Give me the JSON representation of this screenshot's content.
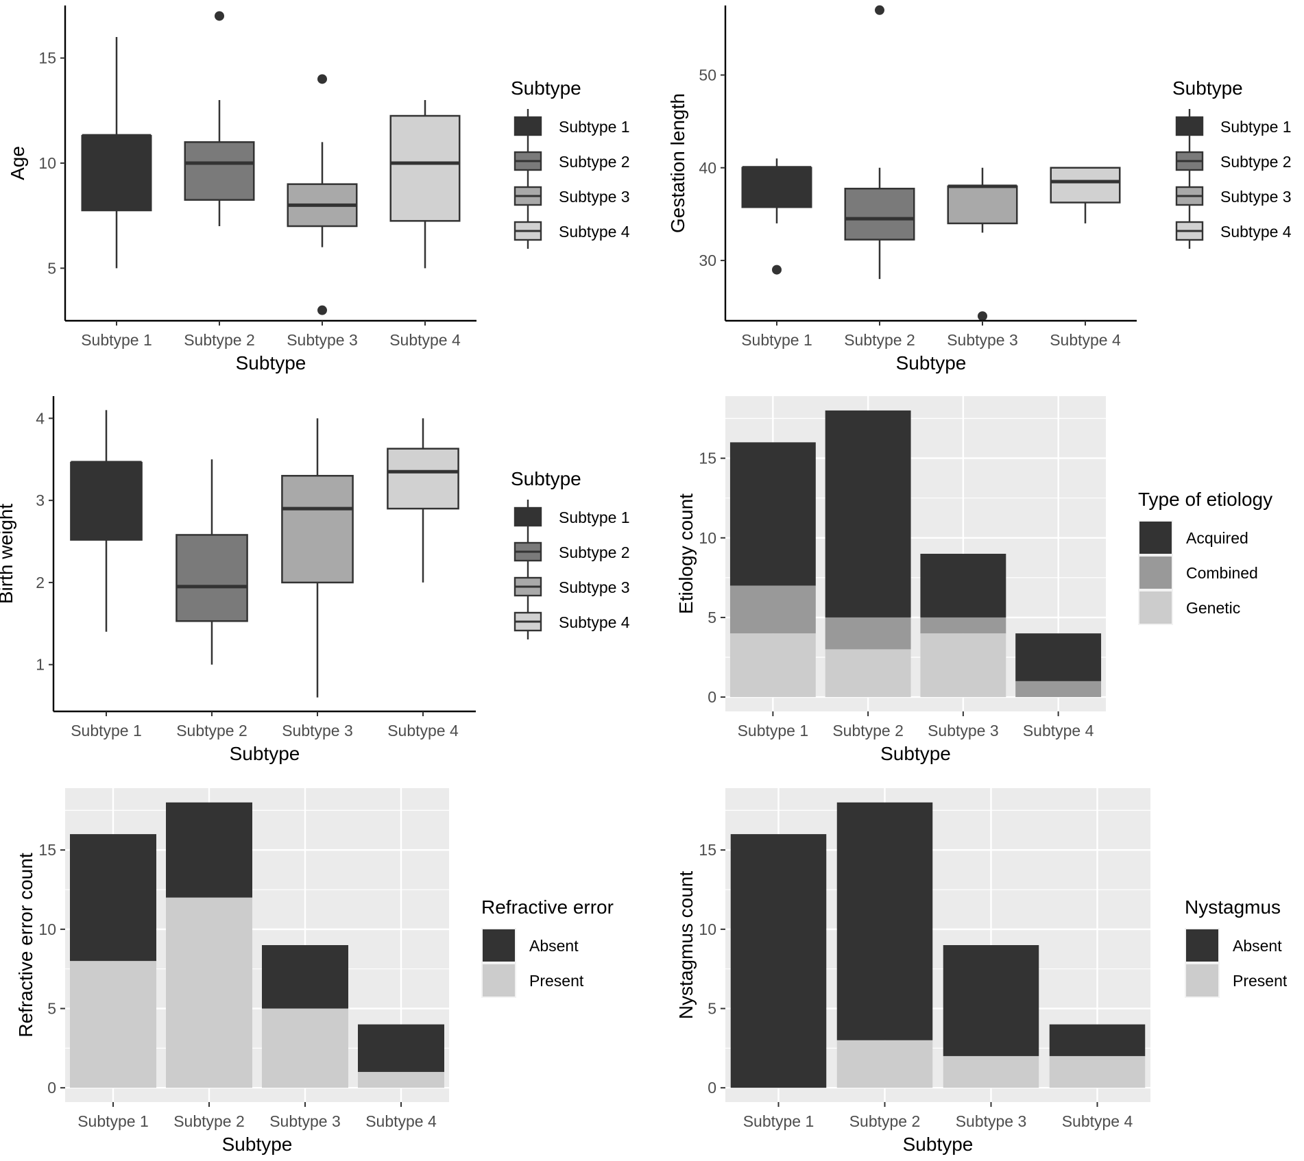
{
  "colors": {
    "subtype1": "#333333",
    "subtype2": "#7a7a7a",
    "subtype3": "#a9a9a9",
    "subtype4": "#d1d1d1",
    "dark": "#333333",
    "mid": "#999999",
    "light": "#cccccc",
    "panel_bg": "#ebebeb"
  },
  "chart_data": [
    {
      "id": "age",
      "type": "box",
      "xlabel": "Subtype",
      "ylabel": "Age",
      "categories": [
        "Subtype 1",
        "Subtype 2",
        "Subtype 3",
        "Subtype 4"
      ],
      "ylim": [
        2.5,
        17.5
      ],
      "yticks": [
        5,
        10,
        15
      ],
      "ytick_labels": [
        "5",
        "10",
        "15"
      ],
      "boxes": [
        {
          "min": 5,
          "q1": 7.75,
          "median": 11.3,
          "q3": 11.3,
          "max": 16,
          "outliers": []
        },
        {
          "min": 7,
          "q1": 8.25,
          "median": 10,
          "q3": 11,
          "max": 13,
          "outliers": [
            17
          ]
        },
        {
          "min": 6,
          "q1": 7,
          "median": 8,
          "q3": 9,
          "max": 11,
          "outliers": [
            14,
            3
          ]
        },
        {
          "min": 5,
          "q1": 7.25,
          "median": 10,
          "q3": 12.25,
          "max": 13,
          "outliers": []
        }
      ],
      "legend": {
        "title": "Subtype",
        "items": [
          "Subtype 1",
          "Subtype 2",
          "Subtype 3",
          "Subtype 4"
        ],
        "placement": "right"
      }
    },
    {
      "id": "gestation",
      "type": "box",
      "xlabel": "Subtype",
      "ylabel": "Gestation length",
      "categories": [
        "Subtype 1",
        "Subtype 2",
        "Subtype 3",
        "Subtype 4"
      ],
      "ylim": [
        23.5,
        57.5
      ],
      "yticks": [
        30,
        40,
        50
      ],
      "ytick_labels": [
        "30",
        "40",
        "50"
      ],
      "boxes": [
        {
          "min": 34,
          "q1": 35.75,
          "median": 40,
          "q3": 40,
          "max": 41,
          "outliers": [
            29
          ]
        },
        {
          "min": 28,
          "q1": 32.25,
          "median": 34.5,
          "q3": 37.75,
          "max": 40,
          "outliers": [
            57
          ]
        },
        {
          "min": 33,
          "q1": 34,
          "median": 38,
          "q3": 38,
          "max": 40,
          "outliers": [
            24
          ]
        },
        {
          "min": 34,
          "q1": 36.25,
          "median": 38.5,
          "q3": 40,
          "max": 40,
          "outliers": []
        }
      ],
      "legend": {
        "title": "Subtype",
        "items": [
          "Subtype 1",
          "Subtype 2",
          "Subtype 3",
          "Subtype 4"
        ],
        "placement": "right"
      }
    },
    {
      "id": "birthweight",
      "type": "box",
      "xlabel": "Subtype",
      "ylabel": "Birth weight",
      "categories": [
        "Subtype 1",
        "Subtype 2",
        "Subtype 3",
        "Subtype 4"
      ],
      "ylim": [
        0.43,
        4.27
      ],
      "yticks": [
        1,
        2,
        3,
        4
      ],
      "ytick_labels": [
        "1",
        "2",
        "3",
        "4"
      ],
      "boxes": [
        {
          "min": 1.4,
          "q1": 2.52,
          "median": 3.46,
          "q3": 3.46,
          "max": 4.1,
          "outliers": []
        },
        {
          "min": 1.0,
          "q1": 1.53,
          "median": 1.95,
          "q3": 2.58,
          "max": 3.5,
          "outliers": []
        },
        {
          "min": 0.6,
          "q1": 2.0,
          "median": 2.9,
          "q3": 3.3,
          "max": 4.0,
          "outliers": []
        },
        {
          "min": 2.0,
          "q1": 2.9,
          "median": 3.35,
          "q3": 3.63,
          "max": 4.0,
          "outliers": []
        }
      ],
      "legend": {
        "title": "Subtype",
        "items": [
          "Subtype 1",
          "Subtype 2",
          "Subtype 3",
          "Subtype 4"
        ],
        "placement": "right"
      }
    },
    {
      "id": "etiology",
      "type": "bar",
      "stacked": true,
      "xlabel": "Subtype",
      "ylabel": "Etiology count",
      "categories": [
        "Subtype 1",
        "Subtype 2",
        "Subtype 3",
        "Subtype 4"
      ],
      "ylim": [
        -0.9,
        18.9
      ],
      "yticks": [
        0,
        5,
        10,
        15
      ],
      "ytick_labels": [
        "0",
        "5",
        "10",
        "15"
      ],
      "series": [
        {
          "name": "Genetic",
          "values": [
            4,
            3,
            4,
            0
          ]
        },
        {
          "name": "Combined",
          "values": [
            3,
            2,
            1,
            1
          ]
        },
        {
          "name": "Acquired",
          "values": [
            9,
            13,
            4,
            3
          ]
        }
      ],
      "legend": {
        "title": "Type of etiology",
        "items": [
          "Acquired",
          "Combined",
          "Genetic"
        ],
        "placement": "right"
      }
    },
    {
      "id": "refractive",
      "type": "bar",
      "stacked": true,
      "xlabel": "Subtype",
      "ylabel": "Refractive error count",
      "categories": [
        "Subtype 1",
        "Subtype 2",
        "Subtype 3",
        "Subtype 4"
      ],
      "ylim": [
        -0.9,
        18.9
      ],
      "yticks": [
        0,
        5,
        10,
        15
      ],
      "ytick_labels": [
        "0",
        "5",
        "10",
        "15"
      ],
      "series": [
        {
          "name": "Present",
          "values": [
            8,
            12,
            5,
            1
          ]
        },
        {
          "name": "Absent",
          "values": [
            8,
            6,
            4,
            3
          ]
        }
      ],
      "legend": {
        "title": "Refractive error",
        "items": [
          "Absent",
          "Present"
        ],
        "placement": "right"
      }
    },
    {
      "id": "nystagmus",
      "type": "bar",
      "stacked": true,
      "xlabel": "Subtype",
      "ylabel": "Nystagmus count",
      "categories": [
        "Subtype 1",
        "Subtype 2",
        "Subtype 3",
        "Subtype 4"
      ],
      "ylim": [
        -0.9,
        18.9
      ],
      "yticks": [
        0,
        5,
        10,
        15
      ],
      "ytick_labels": [
        "0",
        "5",
        "10",
        "15"
      ],
      "series": [
        {
          "name": "Present",
          "values": [
            0,
            3,
            2,
            2
          ]
        },
        {
          "name": "Absent",
          "values": [
            16,
            15,
            7,
            2
          ]
        }
      ],
      "legend": {
        "title": "Nystagmus",
        "items": [
          "Absent",
          "Present"
        ],
        "placement": "right"
      }
    }
  ]
}
